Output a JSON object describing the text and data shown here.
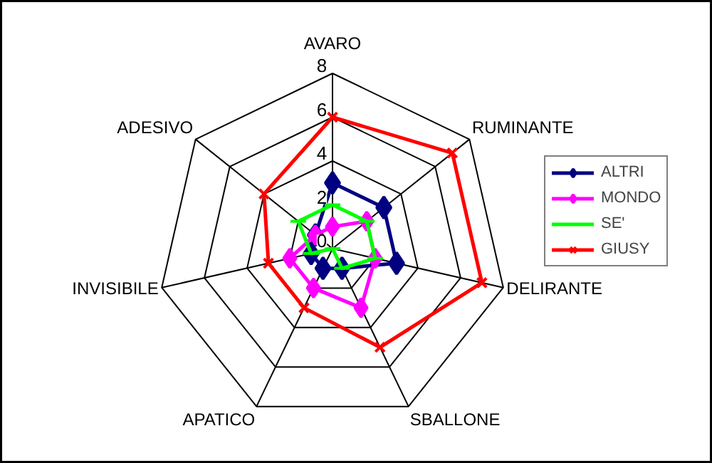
{
  "chart_data": {
    "type": "radar",
    "categories": [
      "AVARO",
      "RUMINANTE",
      "DELIRANTE",
      "SBALLONE",
      "APATICO",
      "INVISIBILE",
      "ADESIVO"
    ],
    "ylim": [
      0,
      8
    ],
    "yticks": [
      0,
      2,
      4,
      6,
      8
    ],
    "legend": "right",
    "series": [
      {
        "name": "ALTRI",
        "color": "#000080",
        "marker": "diamond",
        "values": [
          3,
          3,
          3,
          1,
          1,
          1,
          1
        ]
      },
      {
        "name": "MONDO",
        "color": "#ff00ff",
        "marker": "diamond",
        "values": [
          1,
          2,
          2,
          3,
          2,
          2,
          1
        ]
      },
      {
        "name": "SE'",
        "color": "#00ff00",
        "marker": "dash",
        "values": [
          2,
          2,
          2,
          1,
          0,
          1,
          2
        ]
      },
      {
        "name": "GIUSY",
        "color": "#ff0000",
        "marker": "x",
        "values": [
          6,
          7,
          7,
          5,
          3,
          3,
          4
        ]
      }
    ]
  }
}
